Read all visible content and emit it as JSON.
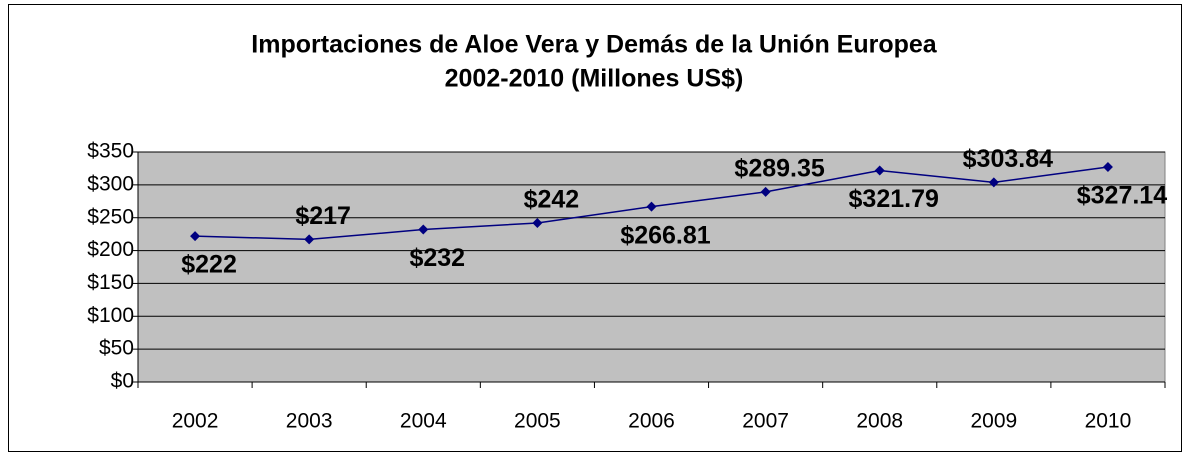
{
  "chart_data": {
    "type": "line",
    "title": [
      "Importaciones de Aloe Vera y Demás de la Unión Europea",
      "2002-2010 (Millones US$)"
    ],
    "categories": [
      "2002",
      "2003",
      "2004",
      "2005",
      "2006",
      "2007",
      "2008",
      "2009",
      "2010"
    ],
    "series": [
      {
        "name": "Importaciones",
        "color": "#000080",
        "values": [
          222,
          217,
          232,
          242,
          266.81,
          289.35,
          321.79,
          303.84,
          327.14
        ],
        "value_labels": [
          "$222",
          "$217",
          "$232",
          "$242",
          "$266.81",
          "$289.35",
          "$321.79",
          "$303.84",
          "$327.14"
        ]
      }
    ],
    "ylim": [
      0,
      350
    ],
    "yticks": [
      {
        "value": 0,
        "label": "$0"
      },
      {
        "value": 50,
        "label": "$50"
      },
      {
        "value": 100,
        "label": "$100"
      },
      {
        "value": 150,
        "label": "$150"
      },
      {
        "value": 200,
        "label": "$200"
      },
      {
        "value": 250,
        "label": "$250"
      },
      {
        "value": 300,
        "label": "$300"
      },
      {
        "value": 350,
        "label": "$350"
      }
    ],
    "grid": true,
    "plot_background": "#c0c0c0"
  }
}
